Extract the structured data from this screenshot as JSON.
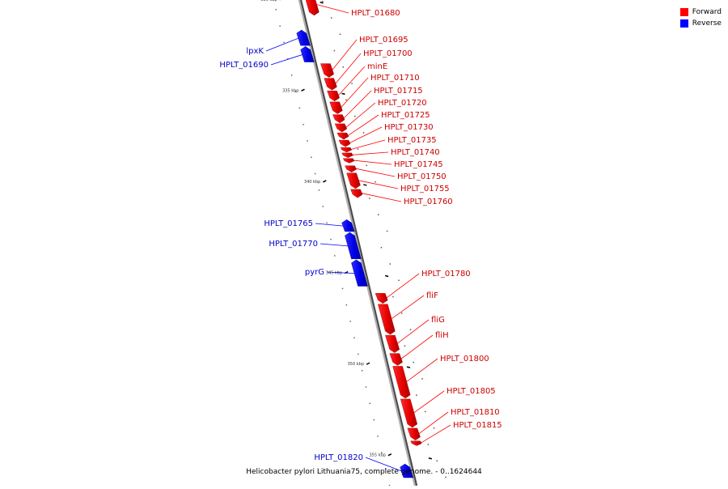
{
  "legend": {
    "forward_label": "Forward",
    "reverse_label": "Reverse",
    "forward_color": "#ff0000",
    "reverse_color": "#0000ff"
  },
  "caption": "Helicobacter pylori Lithuania75, complete genome. - 0..1624644",
  "axis": {
    "start_kbp": 329.7,
    "end_kbp": 356.7,
    "ticks": [
      {
        "kbp": 330,
        "label": "330 kbp"
      },
      {
        "kbp": 335,
        "label": "335 kbp"
      },
      {
        "kbp": 340,
        "label": "340 kbp"
      },
      {
        "kbp": 345,
        "label": "345 kbp"
      },
      {
        "kbp": 350,
        "label": "350 kbp"
      },
      {
        "kbp": 355,
        "label": "355 kbp"
      }
    ]
  },
  "genes": [
    {
      "name": "HPLT_01680",
      "strand": "forward",
      "start": 329.7,
      "end": 330.9
    },
    {
      "name": "lpxK",
      "strand": "reverse",
      "start": 331.7,
      "end": 332.6
    },
    {
      "name": "HPLT_01690",
      "strand": "reverse",
      "start": 332.6,
      "end": 333.5
    },
    {
      "name": "HPLT_01695",
      "strand": "forward",
      "start": 333.5,
      "end": 334.3
    },
    {
      "name": "HPLT_01700",
      "strand": "forward",
      "start": 334.3,
      "end": 335.0
    },
    {
      "name": "minE",
      "strand": "forward",
      "start": 335.0,
      "end": 335.6
    },
    {
      "name": "HPLT_01710",
      "strand": "forward",
      "start": 335.6,
      "end": 336.3
    },
    {
      "name": "HPLT_01715",
      "strand": "forward",
      "start": 336.3,
      "end": 336.8
    },
    {
      "name": "HPLT_01720",
      "strand": "forward",
      "start": 336.8,
      "end": 337.3
    },
    {
      "name": "HPLT_01725",
      "strand": "forward",
      "start": 337.3,
      "end": 337.7
    },
    {
      "name": "HPLT_01730",
      "strand": "forward",
      "start": 337.7,
      "end": 338.1
    },
    {
      "name": "HPLT_01735",
      "strand": "forward",
      "start": 338.1,
      "end": 338.4
    },
    {
      "name": "HPLT_01740",
      "strand": "forward",
      "start": 338.4,
      "end": 338.7
    },
    {
      "name": "HPLT_01745",
      "strand": "forward",
      "start": 338.7,
      "end": 339.0
    },
    {
      "name": "HPLT_01750",
      "strand": "forward",
      "start": 339.1,
      "end": 339.5
    },
    {
      "name": "HPLT_01755",
      "strand": "forward",
      "start": 339.5,
      "end": 340.4
    },
    {
      "name": "HPLT_01760",
      "strand": "forward",
      "start": 340.4,
      "end": 340.9
    },
    {
      "name": "HPLT_01765",
      "strand": "reverse",
      "start": 342.1,
      "end": 342.8
    },
    {
      "name": "HPLT_01770",
      "strand": "reverse",
      "start": 342.8,
      "end": 344.3
    },
    {
      "name": "pyrG",
      "strand": "reverse",
      "start": 344.3,
      "end": 345.8
    },
    {
      "name": "HPLT_01780",
      "strand": "forward",
      "start": 346.1,
      "end": 346.7
    },
    {
      "name": "fliF",
      "strand": "forward",
      "start": 346.7,
      "end": 348.4
    },
    {
      "name": "fliG",
      "strand": "forward",
      "start": 348.4,
      "end": 349.4
    },
    {
      "name": "fliH",
      "strand": "forward",
      "start": 349.4,
      "end": 350.1
    },
    {
      "name": "HPLT_01800",
      "strand": "forward",
      "start": 350.1,
      "end": 351.9
    },
    {
      "name": "HPLT_01805",
      "strand": "forward",
      "start": 351.9,
      "end": 353.5
    },
    {
      "name": "HPLT_01810",
      "strand": "forward",
      "start": 353.5,
      "end": 354.2
    },
    {
      "name": "HPLT_01815",
      "strand": "forward",
      "start": 354.2,
      "end": 354.5
    },
    {
      "name": "HPLT_01820",
      "strand": "reverse",
      "start": 355.5,
      "end": 356.3
    }
  ]
}
